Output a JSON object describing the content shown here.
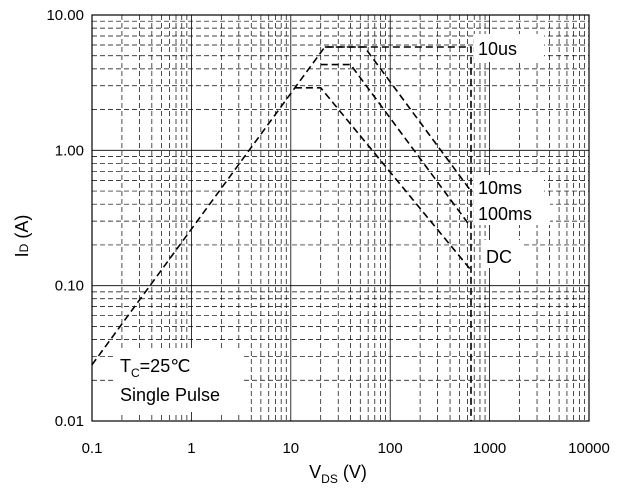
{
  "chart_data": {
    "type": "line",
    "title": "",
    "xscale": "log",
    "yscale": "log",
    "xlim": [
      0.1,
      10000
    ],
    "ylim": [
      0.01,
      10
    ],
    "grid": true,
    "x_ticks": [
      {
        "value": 0.1,
        "label": "0.1"
      },
      {
        "value": 1,
        "label": "1"
      },
      {
        "value": 10,
        "label": "10"
      },
      {
        "value": 100,
        "label": "100"
      },
      {
        "value": 1000,
        "label": "1000"
      },
      {
        "value": 10000,
        "label": "10000"
      }
    ],
    "y_ticks": [
      {
        "value": 0.01,
        "label": "0.01"
      },
      {
        "value": 0.1,
        "label": "0.10"
      },
      {
        "value": 1,
        "label": "1.00"
      },
      {
        "value": 10,
        "label": "10.00"
      }
    ],
    "xlabel": {
      "main": "V",
      "sub": "DS",
      "unit": " (V)"
    },
    "ylabel": {
      "main": "I",
      "sub": "D",
      "unit": " (A)"
    },
    "series": [
      {
        "name": "10us",
        "points": [
          [
            0.1,
            0.026
          ],
          [
            22,
            5.8
          ],
          [
            650,
            5.8
          ],
          [
            650,
            0.01
          ]
        ]
      },
      {
        "name": "10ms",
        "points": [
          [
            22,
            5.8
          ],
          [
            55,
            5.8
          ],
          [
            650,
            0.5
          ]
        ]
      },
      {
        "name": "100ms",
        "points": [
          [
            20,
            4.3
          ],
          [
            40,
            4.3
          ],
          [
            650,
            0.27
          ]
        ]
      },
      {
        "name": "DC",
        "points": [
          [
            11,
            2.9
          ],
          [
            20,
            2.9
          ],
          [
            650,
            0.13
          ]
        ]
      }
    ],
    "series_labels": [
      {
        "series": "10us",
        "text": "10us"
      },
      {
        "series": "10ms",
        "text": "10ms"
      },
      {
        "series": "100ms",
        "text": "100ms"
      },
      {
        "series": "DC",
        "text": "DC"
      }
    ],
    "annotations": {
      "tc_main": "T",
      "tc_sub": "C",
      "tc_value": "=25℃",
      "pulse": "Single Pulse"
    }
  }
}
